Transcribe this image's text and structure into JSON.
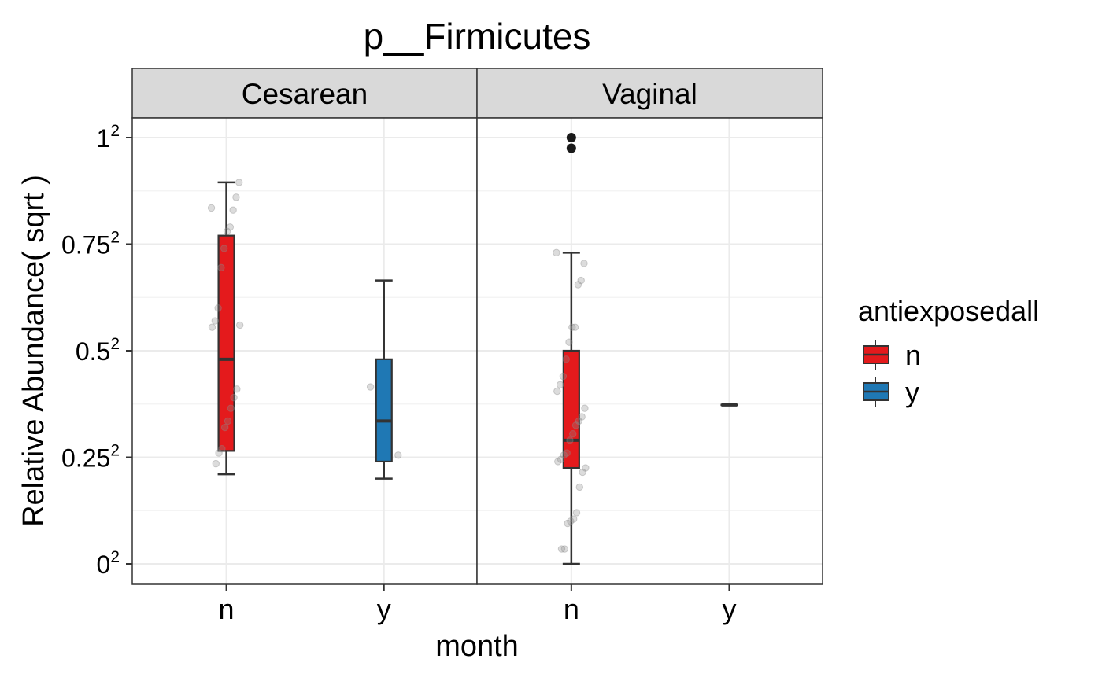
{
  "chart_data": {
    "type": "box",
    "title": "p__Firmicutes",
    "xlabel": "month",
    "ylabel": "Relative Abundance( sqrt )",
    "y_scale": "sqrt",
    "ylim": [
      0,
      1
    ],
    "y_ticks": [
      {
        "value": 0,
        "base": "0",
        "exp": "2"
      },
      {
        "value": 0.0625,
        "base": "0.25",
        "exp": "2"
      },
      {
        "value": 0.25,
        "base": "0.5",
        "exp": "2"
      },
      {
        "value": 0.5625,
        "base": "0.75",
        "exp": "2"
      },
      {
        "value": 1,
        "base": "1",
        "exp": "2"
      }
    ],
    "categories": [
      "n",
      "y"
    ],
    "grid": true,
    "legend": {
      "title": "antiexposedall",
      "position": "right",
      "entries": [
        {
          "label": "n",
          "color": "#E41A1C"
        },
        {
          "label": "y",
          "color": "#1F78B4"
        }
      ]
    },
    "panels": [
      {
        "label": "Cesarean",
        "boxes": [
          {
            "x": "n",
            "group": "n",
            "sqrt_min": 0.21,
            "sqrt_q1": 0.265,
            "sqrt_median": 0.48,
            "sqrt_q3": 0.77,
            "sqrt_max": 0.895,
            "outliers": []
          },
          {
            "x": "y",
            "group": "y",
            "sqrt_min": 0.2,
            "sqrt_q1": 0.24,
            "sqrt_median": 0.335,
            "sqrt_q3": 0.48,
            "sqrt_max": 0.665,
            "outliers": []
          }
        ],
        "points": [
          {
            "x": "n",
            "sqrt_y": 0.835
          },
          {
            "x": "n",
            "sqrt_y": 0.895
          },
          {
            "x": "n",
            "sqrt_y": 0.86
          },
          {
            "x": "n",
            "sqrt_y": 0.83
          },
          {
            "x": "n",
            "sqrt_y": 0.79
          },
          {
            "x": "n",
            "sqrt_y": 0.78
          },
          {
            "x": "n",
            "sqrt_y": 0.74
          },
          {
            "x": "n",
            "sqrt_y": 0.695
          },
          {
            "x": "n",
            "sqrt_y": 0.6
          },
          {
            "x": "n",
            "sqrt_y": 0.57
          },
          {
            "x": "n",
            "sqrt_y": 0.555
          },
          {
            "x": "n",
            "sqrt_y": 0.56
          },
          {
            "x": "n",
            "sqrt_y": 0.41
          },
          {
            "x": "n",
            "sqrt_y": 0.39
          },
          {
            "x": "n",
            "sqrt_y": 0.365
          },
          {
            "x": "n",
            "sqrt_y": 0.335
          },
          {
            "x": "n",
            "sqrt_y": 0.32
          },
          {
            "x": "n",
            "sqrt_y": 0.27
          },
          {
            "x": "n",
            "sqrt_y": 0.26
          },
          {
            "x": "n",
            "sqrt_y": 0.235
          },
          {
            "x": "y",
            "sqrt_y": 0.415
          },
          {
            "x": "y",
            "sqrt_y": 0.255
          }
        ]
      },
      {
        "label": "Vaginal",
        "boxes": [
          {
            "x": "n",
            "group": "n",
            "sqrt_min": 0.0,
            "sqrt_q1": 0.225,
            "sqrt_median": 0.29,
            "sqrt_q3": 0.5,
            "sqrt_max": 0.73,
            "outliers": [
              1.0,
              0.975
            ]
          },
          {
            "x": "y",
            "group": "y",
            "sqrt_min": 0.373,
            "sqrt_q1": 0.373,
            "sqrt_median": 0.373,
            "sqrt_q3": 0.373,
            "sqrt_max": 0.373,
            "outliers": []
          }
        ],
        "points": [
          {
            "x": "n",
            "sqrt_y": 0.73
          },
          {
            "x": "n",
            "sqrt_y": 0.705
          },
          {
            "x": "n",
            "sqrt_y": 0.665
          },
          {
            "x": "n",
            "sqrt_y": 0.655
          },
          {
            "x": "n",
            "sqrt_y": 0.555
          },
          {
            "x": "n",
            "sqrt_y": 0.555
          },
          {
            "x": "n",
            "sqrt_y": 0.52
          },
          {
            "x": "n",
            "sqrt_y": 0.48
          },
          {
            "x": "n",
            "sqrt_y": 0.44
          },
          {
            "x": "n",
            "sqrt_y": 0.42
          },
          {
            "x": "n",
            "sqrt_y": 0.405
          },
          {
            "x": "n",
            "sqrt_y": 0.365
          },
          {
            "x": "n",
            "sqrt_y": 0.345
          },
          {
            "x": "n",
            "sqrt_y": 0.335
          },
          {
            "x": "n",
            "sqrt_y": 0.325
          },
          {
            "x": "n",
            "sqrt_y": 0.305
          },
          {
            "x": "n",
            "sqrt_y": 0.29
          },
          {
            "x": "n",
            "sqrt_y": 0.26
          },
          {
            "x": "n",
            "sqrt_y": 0.255
          },
          {
            "x": "n",
            "sqrt_y": 0.245
          },
          {
            "x": "n",
            "sqrt_y": 0.24
          },
          {
            "x": "n",
            "sqrt_y": 0.225
          },
          {
            "x": "n",
            "sqrt_y": 0.215
          },
          {
            "x": "n",
            "sqrt_y": 0.18
          },
          {
            "x": "n",
            "sqrt_y": 0.12
          },
          {
            "x": "n",
            "sqrt_y": 0.105
          },
          {
            "x": "n",
            "sqrt_y": 0.1
          },
          {
            "x": "n",
            "sqrt_y": 0.095
          },
          {
            "x": "n",
            "sqrt_y": 0.035
          },
          {
            "x": "n",
            "sqrt_y": 0.035
          }
        ]
      }
    ]
  }
}
